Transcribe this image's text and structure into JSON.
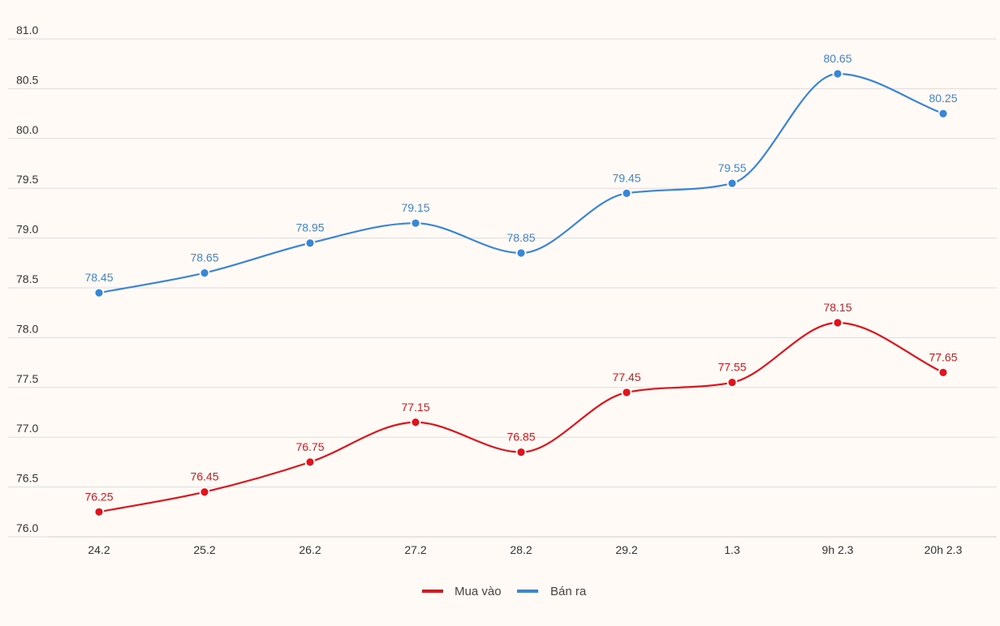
{
  "chart_data": {
    "type": "line",
    "categories": [
      "24.2",
      "25.2",
      "26.2",
      "27.2",
      "28.2",
      "29.2",
      "1.3",
      "9h 2.3",
      "20h 2.3"
    ],
    "series": [
      {
        "name": "Mua vào",
        "color": "#e0141c",
        "values": [
          76.25,
          76.45,
          76.75,
          77.15,
          76.85,
          77.45,
          77.55,
          78.15,
          77.65
        ],
        "labels": [
          "76.25",
          "76.45",
          "76.75",
          "77.15",
          "76.85",
          "77.45",
          "77.55",
          "78.15",
          "77.65"
        ]
      },
      {
        "name": "Bán ra",
        "color": "#3a86d6",
        "values": [
          78.45,
          78.65,
          78.95,
          79.15,
          78.85,
          79.45,
          79.55,
          80.65,
          80.25
        ],
        "labels": [
          "78.45",
          "78.65",
          "78.95",
          "79.15",
          "78.85",
          "79.45",
          "79.55",
          "80.65",
          "80.25"
        ]
      }
    ],
    "ylim": [
      76.0,
      81.0
    ],
    "yticks": [
      76.0,
      76.5,
      77.0,
      77.5,
      78.0,
      78.5,
      79.0,
      79.5,
      80.0,
      80.5,
      81.0
    ],
    "ytick_labels": [
      "76.0",
      "76.5",
      "77.0",
      "77.5",
      "78.0",
      "78.5",
      "79.0",
      "79.5",
      "80.0",
      "80.5",
      "81.0"
    ],
    "title": "",
    "xlabel": "",
    "ylabel": "",
    "grid": true,
    "legend_position": "bottom-center"
  }
}
